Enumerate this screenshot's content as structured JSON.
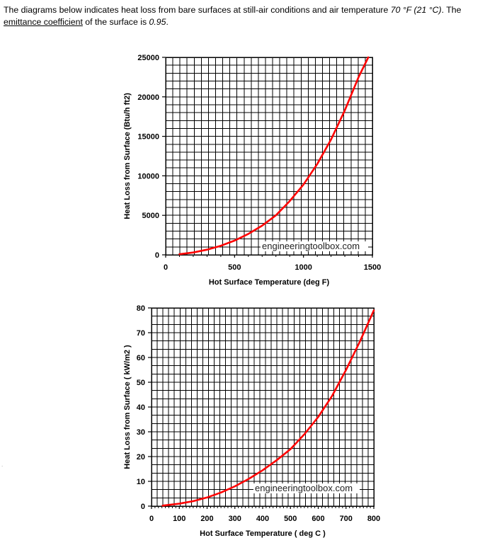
{
  "intro": {
    "t1": "The diagrams below indicates heat loss from bare surfaces at still-air conditions and air temperature ",
    "temp": "70 °F (21 °C)",
    "t2": ". The ",
    "link": "emittance coefficient",
    "t3": " of the surface is ",
    "coef": "0.95",
    "t4": "."
  },
  "stray_mark": ".",
  "colors": {
    "curve": "#ff0000",
    "grid": "#000000",
    "background": "#ffffff"
  },
  "chart_data": [
    {
      "type": "line",
      "title": "",
      "xlabel": "Hot Surface Temperature (deg F)",
      "ylabel": "Heat Loss from Surface (Btu/h ft2)",
      "xlim": [
        0,
        1500
      ],
      "ylim": [
        0,
        25000
      ],
      "x_ticks": [
        "0",
        "500",
        "1000",
        "1500"
      ],
      "y_ticks": [
        "0",
        "5000",
        "10000",
        "15000",
        "20000",
        "25000"
      ],
      "grid": true,
      "watermark": "engineeringtoolbox.com",
      "series": [
        {
          "x": [
            100,
            200,
            300,
            400,
            500,
            600,
            700,
            800,
            900,
            1000,
            1100,
            1200,
            1300,
            1400,
            1470
          ],
          "values": [
            80,
            300,
            650,
            1150,
            1800,
            2650,
            3700,
            5000,
            6800,
            8900,
            11500,
            14600,
            18300,
            22500,
            25000
          ]
        }
      ]
    },
    {
      "type": "line",
      "title": "",
      "xlabel": "Hot Surface Temperature ( deg C )",
      "ylabel": "Heat Loss from Surface ( kW/m2 )",
      "xlim": [
        0,
        800
      ],
      "ylim": [
        0,
        80
      ],
      "x_ticks": [
        "0",
        "100",
        "200",
        "300",
        "400",
        "500",
        "600",
        "700",
        "800"
      ],
      "y_ticks": [
        "0",
        "10",
        "20",
        "30",
        "40",
        "50",
        "60",
        "70",
        "80"
      ],
      "grid": true,
      "watermark": "engineeringtoolbox.com",
      "series": [
        {
          "x": [
            40,
            100,
            150,
            200,
            250,
            300,
            350,
            400,
            450,
            500,
            550,
            600,
            650,
            700,
            750,
            800
          ],
          "values": [
            0.2,
            1.0,
            2.0,
            3.5,
            5.5,
            8.0,
            11.0,
            14.5,
            18.5,
            23.0,
            29.0,
            36.0,
            44.5,
            55.0,
            66.5,
            79.0
          ]
        }
      ]
    }
  ]
}
